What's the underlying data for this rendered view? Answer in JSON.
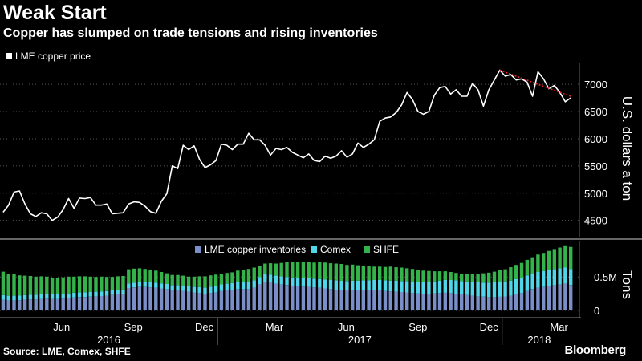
{
  "header": {
    "title": "Weak Start",
    "subtitle": "Copper has slumped on trade tensions and rising inventories"
  },
  "footer": {
    "source": "Source: LME, Comex, SHFE",
    "brand": "Bloomberg"
  },
  "colors": {
    "background": "#000000",
    "price_line": "#ffffff",
    "trend_line": "#e8232b",
    "lme": "#7a8fc8",
    "comex": "#4fd6e8",
    "shfe": "#34b34a",
    "grid": "#555555"
  },
  "chart_data": [
    {
      "type": "line",
      "legend": "LME copper price",
      "ylabel": "U.S. dollars a ton",
      "ylim": [
        4200,
        7400
      ],
      "yticks": [
        4500,
        5000,
        5500,
        6000,
        6500,
        7000
      ],
      "grid": true,
      "legend_position": "top-left",
      "series": [
        {
          "name": "LME copper price",
          "x": [
            "2016-04-01",
            "2016-04-08",
            "2016-04-15",
            "2016-04-22",
            "2016-04-29",
            "2016-05-06",
            "2016-05-13",
            "2016-05-20",
            "2016-05-27",
            "2016-06-03",
            "2016-06-10",
            "2016-06-17",
            "2016-06-24",
            "2016-07-01",
            "2016-07-08",
            "2016-07-15",
            "2016-07-22",
            "2016-07-29",
            "2016-08-05",
            "2016-08-12",
            "2016-08-19",
            "2016-08-26",
            "2016-09-02",
            "2016-09-09",
            "2016-09-16",
            "2016-09-23",
            "2016-09-30",
            "2016-10-07",
            "2016-10-14",
            "2016-10-21",
            "2016-10-28",
            "2016-11-04",
            "2016-11-11",
            "2016-11-18",
            "2016-11-25",
            "2016-12-02",
            "2016-12-09",
            "2016-12-16",
            "2016-12-23",
            "2016-12-30",
            "2017-01-06",
            "2017-01-13",
            "2017-01-20",
            "2017-01-27",
            "2017-02-03",
            "2017-02-10",
            "2017-02-17",
            "2017-02-24",
            "2017-03-03",
            "2017-03-10",
            "2017-03-17",
            "2017-03-24",
            "2017-03-31",
            "2017-04-07",
            "2017-04-14",
            "2017-04-21",
            "2017-04-28",
            "2017-05-05",
            "2017-05-12",
            "2017-05-19",
            "2017-05-26",
            "2017-06-02",
            "2017-06-09",
            "2017-06-16",
            "2017-06-23",
            "2017-06-30",
            "2017-07-07",
            "2017-07-14",
            "2017-07-21",
            "2017-07-28",
            "2017-08-04",
            "2017-08-11",
            "2017-08-18",
            "2017-08-25",
            "2017-09-01",
            "2017-09-08",
            "2017-09-15",
            "2017-09-22",
            "2017-09-29",
            "2017-10-06",
            "2017-10-13",
            "2017-10-20",
            "2017-10-27",
            "2017-11-03",
            "2017-11-10",
            "2017-11-17",
            "2017-11-24",
            "2017-12-01",
            "2017-12-08",
            "2017-12-15",
            "2017-12-22",
            "2017-12-29",
            "2018-01-05",
            "2018-01-12",
            "2018-01-19",
            "2018-01-26",
            "2018-02-02",
            "2018-02-09",
            "2018-02-16",
            "2018-02-23",
            "2018-03-02",
            "2018-03-09",
            "2018-03-16",
            "2018-03-23",
            "2018-03-30"
          ],
          "values": [
            4650,
            4780,
            5020,
            5040,
            4800,
            4620,
            4570,
            4640,
            4620,
            4500,
            4560,
            4700,
            4900,
            4720,
            4910,
            4900,
            4920,
            4780,
            4780,
            4800,
            4620,
            4630,
            4640,
            4800,
            4840,
            4830,
            4760,
            4660,
            4630,
            4850,
            4990,
            5500,
            5450,
            5880,
            5800,
            5870,
            5620,
            5470,
            5520,
            5600,
            5900,
            5880,
            5800,
            5900,
            5900,
            6100,
            5980,
            5980,
            5880,
            5700,
            5820,
            5800,
            5840,
            5750,
            5700,
            5650,
            5720,
            5600,
            5580,
            5680,
            5640,
            5680,
            5780,
            5660,
            5720,
            5920,
            5840,
            5900,
            5980,
            6320,
            6380,
            6400,
            6480,
            6620,
            6850,
            6720,
            6500,
            6450,
            6500,
            6800,
            6940,
            6960,
            6820,
            6900,
            6780,
            6780,
            7020,
            6900,
            6600,
            6900,
            7080,
            7260,
            7150,
            7180,
            7080,
            7100,
            7040,
            6780,
            7230,
            7100,
            6920,
            6980,
            6850,
            6680,
            6750
          ]
        },
        {
          "name": "trend",
          "x": [
            "2017-12-29",
            "2018-03-30"
          ],
          "values": [
            7260,
            6780
          ]
        }
      ]
    },
    {
      "type": "bar",
      "stacked": true,
      "ylabel": "Tons",
      "yticks": [
        0,
        500000
      ],
      "ytick_labels": [
        "0",
        "0.5M"
      ],
      "ylim": [
        0,
        1000000
      ],
      "legend_position": "top-center",
      "series": [
        {
          "name": "LME copper inventories",
          "values": [
            160000,
            150000,
            150000,
            155000,
            160000,
            165000,
            165000,
            170000,
            175000,
            170000,
            170000,
            175000,
            185000,
            195000,
            200000,
            200000,
            205000,
            210000,
            215000,
            220000,
            230000,
            240000,
            245000,
            335000,
            345000,
            350000,
            350000,
            345000,
            340000,
            330000,
            320000,
            300000,
            300000,
            290000,
            280000,
            270000,
            260000,
            250000,
            260000,
            270000,
            290000,
            300000,
            310000,
            320000,
            320000,
            320000,
            340000,
            390000,
            425000,
            420000,
            400000,
            390000,
            380000,
            370000,
            360000,
            355000,
            350000,
            345000,
            340000,
            330000,
            320000,
            310000,
            305000,
            300000,
            300000,
            300000,
            300000,
            300000,
            300000,
            300000,
            290000,
            285000,
            280000,
            275000,
            270000,
            260000,
            255000,
            250000,
            250000,
            255000,
            260000,
            265000,
            260000,
            250000,
            240000,
            230000,
            220000,
            210000,
            205000,
            200000,
            200000,
            205000,
            210000,
            220000,
            240000,
            260000,
            290000,
            320000,
            340000,
            350000,
            360000,
            375000,
            390000,
            400000,
            380000
          ]
        },
        {
          "name": "Comex",
          "values": [
            70000,
            70000,
            70000,
            70000,
            70000,
            70000,
            70000,
            70000,
            70000,
            70000,
            70000,
            70000,
            70000,
            70000,
            70000,
            70000,
            70000,
            70000,
            70000,
            70000,
            70000,
            70000,
            70000,
            70000,
            70000,
            70000,
            70000,
            75000,
            75000,
            75000,
            75000,
            80000,
            80000,
            80000,
            85000,
            85000,
            90000,
            90000,
            95000,
            95000,
            100000,
            100000,
            100000,
            105000,
            105000,
            110000,
            110000,
            110000,
            115000,
            115000,
            120000,
            120000,
            120000,
            125000,
            125000,
            125000,
            130000,
            130000,
            130000,
            135000,
            135000,
            140000,
            140000,
            140000,
            145000,
            145000,
            150000,
            150000,
            155000,
            155000,
            160000,
            160000,
            165000,
            165000,
            170000,
            170000,
            175000,
            175000,
            180000,
            180000,
            185000,
            190000,
            195000,
            200000,
            200000,
            205000,
            205000,
            210000,
            210000,
            215000,
            220000,
            225000,
            225000,
            225000,
            230000,
            230000,
            235000,
            235000,
            235000,
            240000,
            240000,
            240000,
            240000,
            240000,
            240000
          ]
        },
        {
          "name": "SHFE",
          "values": [
            350000,
            330000,
            320000,
            300000,
            290000,
            280000,
            270000,
            270000,
            260000,
            250000,
            250000,
            250000,
            250000,
            240000,
            240000,
            240000,
            230000,
            220000,
            220000,
            210000,
            200000,
            200000,
            200000,
            210000,
            210000,
            210000,
            200000,
            190000,
            180000,
            170000,
            160000,
            150000,
            150000,
            150000,
            140000,
            150000,
            160000,
            170000,
            170000,
            170000,
            160000,
            160000,
            160000,
            170000,
            180000,
            190000,
            190000,
            170000,
            160000,
            170000,
            180000,
            200000,
            220000,
            230000,
            240000,
            240000,
            240000,
            240000,
            250000,
            250000,
            250000,
            250000,
            250000,
            240000,
            240000,
            230000,
            220000,
            210000,
            200000,
            200000,
            200000,
            210000,
            200000,
            200000,
            190000,
            190000,
            180000,
            170000,
            160000,
            150000,
            140000,
            130000,
            120000,
            110000,
            110000,
            110000,
            120000,
            130000,
            140000,
            150000,
            160000,
            170000,
            180000,
            200000,
            210000,
            220000,
            230000,
            240000,
            260000,
            270000,
            290000,
            290000,
            310000,
            320000,
            330000
          ]
        }
      ]
    }
  ],
  "time_axis": {
    "months": [
      "Jun",
      "Sep",
      "Dec",
      "Mar",
      "Jun",
      "Sep",
      "Dec",
      "Mar"
    ],
    "years": [
      "2016",
      "2017",
      "2018"
    ]
  }
}
